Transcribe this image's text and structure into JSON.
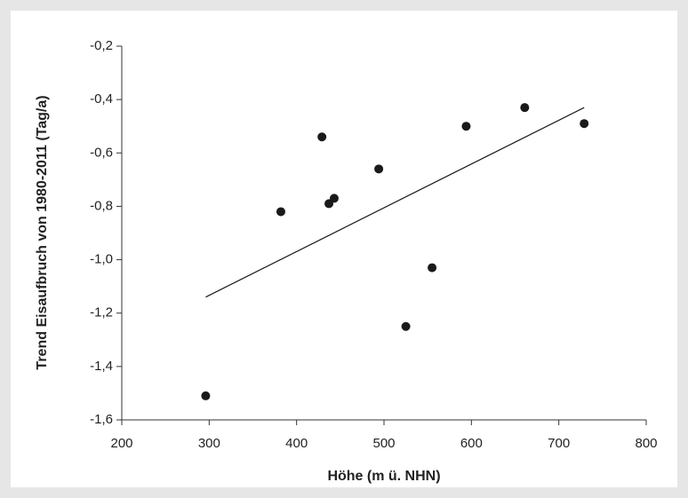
{
  "chart_data": {
    "type": "scatter",
    "x_label": "Höhe (m ü. NHN)",
    "y_label": "Trend Eisaufbruch von 1980-2011 (Tag/a)",
    "points": {
      "color": "#1a1a1a",
      "x": [
        296,
        382,
        429,
        437,
        443,
        494,
        525,
        555,
        594,
        661,
        729
      ],
      "values": [
        -1.51,
        -0.82,
        -0.54,
        -0.79,
        -0.77,
        -0.66,
        -1.25,
        -1.03,
        -0.5,
        -0.43,
        -0.49
      ]
    },
    "trend_line": {
      "color": "#1a1a1a",
      "x": [
        296,
        729
      ],
      "values": [
        -1.14,
        -0.43
      ]
    },
    "xlim": [
      200,
      800
    ],
    "xticks": [
      200,
      300,
      400,
      500,
      600,
      700,
      800
    ],
    "ylim": [
      -1.6,
      -0.2
    ],
    "yticks": [
      {
        "value": -1.6,
        "label": "-1,6"
      },
      {
        "value": -1.4,
        "label": "-1,4"
      },
      {
        "value": -1.2,
        "label": "-1,2"
      },
      {
        "value": -1.0,
        "label": "-1,0"
      },
      {
        "value": -0.8,
        "label": "-0,8"
      },
      {
        "value": -0.6,
        "label": "-0,6"
      },
      {
        "value": -0.4,
        "label": "-0,4"
      },
      {
        "value": -0.2,
        "label": "-0,2"
      }
    ]
  }
}
